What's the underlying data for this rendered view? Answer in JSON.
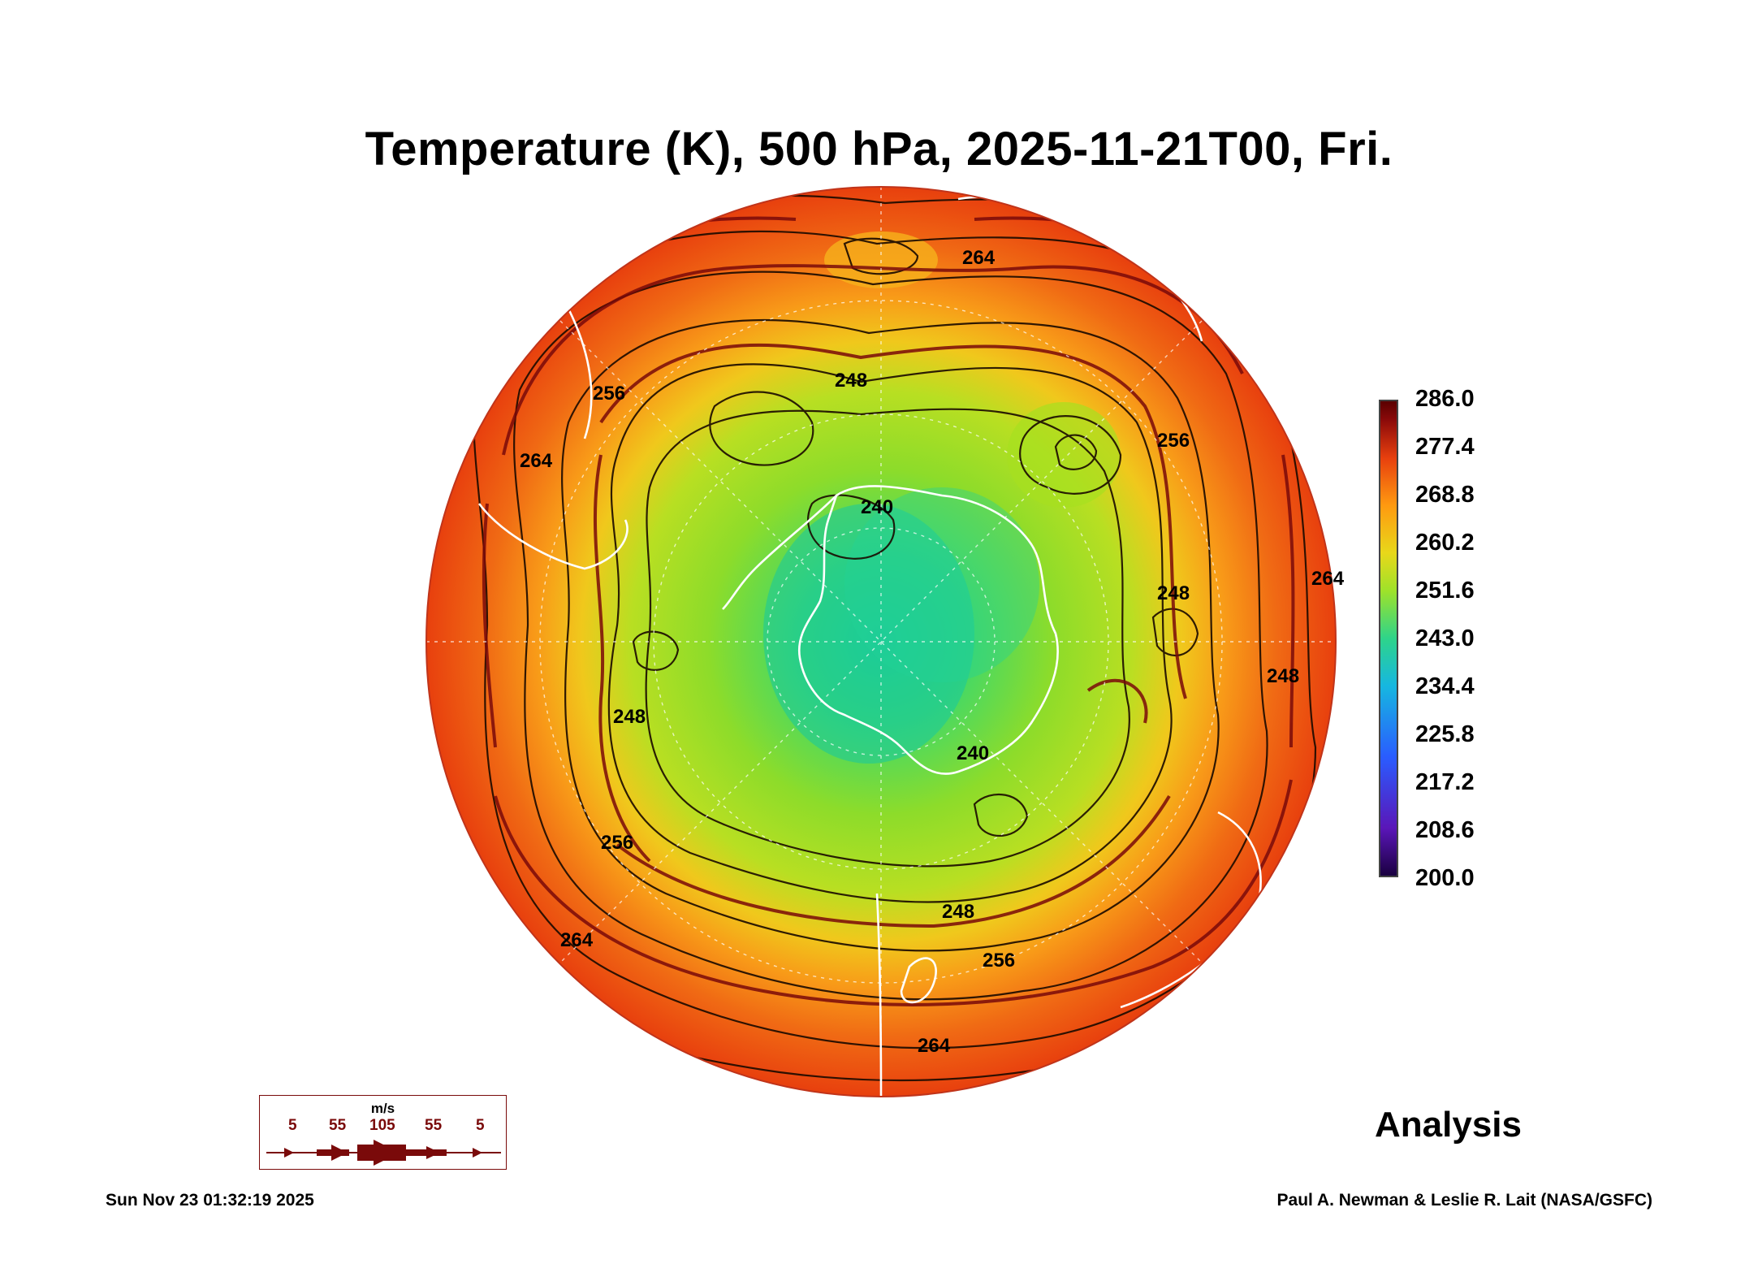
{
  "title": "Temperature (K), 500 hPa, 2025-11-21T00, Fri.",
  "colorbar": {
    "labels": [
      "286.0",
      "277.4",
      "268.8",
      "260.2",
      "251.6",
      "243.0",
      "234.4",
      "225.8",
      "217.2",
      "208.6",
      "200.0"
    ],
    "min": 200.0,
    "max": 286.0
  },
  "contour_labels": [
    "264",
    "248",
    "256",
    "264",
    "256",
    "248",
    "240",
    "248",
    "248",
    "240",
    "256",
    "248",
    "256",
    "264",
    "264",
    "264"
  ],
  "wind_legend": {
    "unit": "m/s",
    "speeds": [
      "5",
      "55",
      "105",
      "55",
      "5"
    ]
  },
  "label_analysis": "Analysis",
  "timestamp": "Sun Nov 23 01:32:19 2025",
  "credit": "Paul A. Newman & Leslie R. Lait (NASA/GSFC)",
  "colors": {
    "warm": "#e8400e",
    "mid": "#f2a11a",
    "cool": "#8ddc2a",
    "cold": "#2ed48a",
    "contour": "#1a0a00",
    "streamline": "#7a0a0a",
    "coast": "#ffffff"
  }
}
